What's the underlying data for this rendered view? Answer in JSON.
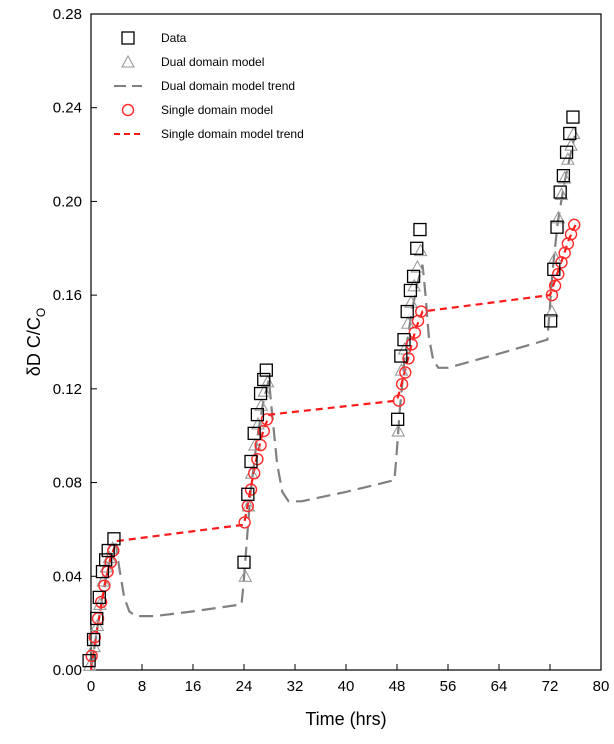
{
  "chart_data": {
    "type": "scatter",
    "xlabel": "Time (hrs)",
    "ylabel_main": "δD C/C",
    "ylabel_sub": "O",
    "xlim": [
      0,
      80
    ],
    "ylim": [
      0,
      0.28
    ],
    "x_ticks": [
      0,
      8,
      16,
      24,
      32,
      40,
      48,
      56,
      64,
      72,
      80
    ],
    "y_ticks": [
      0.0,
      0.04,
      0.08,
      0.12,
      0.16,
      0.2,
      0.24,
      0.28
    ],
    "y_tick_labels": [
      "0.00",
      "0.04",
      "0.08",
      "0.12",
      "0.16",
      "0.20",
      "0.24",
      "0.28"
    ],
    "grid": false,
    "legend_position": "top-left",
    "legend": [
      {
        "label": "Data",
        "marker": "square",
        "color": "#000000"
      },
      {
        "label": "Dual domain model",
        "marker": "triangle",
        "color": "#9a9a9a"
      },
      {
        "label": "Dual domain model trend",
        "marker": "dash",
        "color": "#808080"
      },
      {
        "label": "Single domain model",
        "marker": "circle",
        "color": "#ff2a2a"
      },
      {
        "label": "Single domain model trend",
        "marker": "dash",
        "color": "#ff1a1a"
      }
    ],
    "series": [
      {
        "name": "Data",
        "type": "scatter",
        "marker": "square",
        "color": "#000000",
        "points": [
          [
            -0.3,
            0.004
          ],
          [
            0.4,
            0.013
          ],
          [
            0.9,
            0.022
          ],
          [
            1.3,
            0.031
          ],
          [
            1.8,
            0.042
          ],
          [
            2.3,
            0.047
          ],
          [
            2.7,
            0.051
          ],
          [
            3.6,
            0.056
          ],
          [
            24.0,
            0.046
          ],
          [
            24.6,
            0.075
          ],
          [
            25.1,
            0.089
          ],
          [
            25.6,
            0.101
          ],
          [
            26.1,
            0.109
          ],
          [
            26.6,
            0.118
          ],
          [
            27.1,
            0.124
          ],
          [
            27.5,
            0.128
          ],
          [
            48.1,
            0.107
          ],
          [
            48.6,
            0.134
          ],
          [
            49.1,
            0.141
          ],
          [
            49.6,
            0.153
          ],
          [
            50.1,
            0.162
          ],
          [
            50.6,
            0.168
          ],
          [
            51.1,
            0.18
          ],
          [
            51.6,
            0.188
          ],
          [
            72.1,
            0.149
          ],
          [
            72.6,
            0.171
          ],
          [
            73.1,
            0.189
          ],
          [
            73.6,
            0.204
          ],
          [
            74.1,
            0.211
          ],
          [
            74.6,
            0.221
          ],
          [
            75.1,
            0.229
          ],
          [
            75.6,
            0.236
          ]
        ]
      },
      {
        "name": "Dual domain model",
        "type": "scatter",
        "marker": "triangle",
        "color": "#9a9a9a",
        "points": [
          [
            -0.2,
            0.002
          ],
          [
            0.5,
            0.01
          ],
          [
            1.0,
            0.019
          ],
          [
            1.4,
            0.028
          ],
          [
            1.9,
            0.038
          ],
          [
            2.4,
            0.044
          ],
          [
            2.9,
            0.048
          ],
          [
            3.4,
            0.052
          ],
          [
            24.2,
            0.04
          ],
          [
            24.7,
            0.07
          ],
          [
            25.2,
            0.084
          ],
          [
            25.7,
            0.096
          ],
          [
            26.2,
            0.105
          ],
          [
            26.7,
            0.113
          ],
          [
            27.2,
            0.119
          ],
          [
            27.7,
            0.123
          ],
          [
            48.2,
            0.102
          ],
          [
            48.7,
            0.128
          ],
          [
            49.2,
            0.137
          ],
          [
            49.7,
            0.148
          ],
          [
            50.2,
            0.157
          ],
          [
            50.7,
            0.164
          ],
          [
            51.2,
            0.172
          ],
          [
            51.7,
            0.179
          ],
          [
            72.3,
            0.153
          ],
          [
            72.8,
            0.176
          ],
          [
            73.3,
            0.193
          ],
          [
            73.8,
            0.203
          ],
          [
            74.3,
            0.21
          ],
          [
            74.8,
            0.218
          ],
          [
            75.3,
            0.224
          ],
          [
            75.7,
            0.229
          ]
        ]
      },
      {
        "name": "Dual domain model trend",
        "type": "line",
        "dash": "dash",
        "color": "#808080",
        "points": [
          [
            0,
            0.0
          ],
          [
            1,
            0.018
          ],
          [
            2,
            0.035
          ],
          [
            3,
            0.047
          ],
          [
            3.9,
            0.054
          ],
          [
            4.4,
            0.044
          ],
          [
            5.2,
            0.031
          ],
          [
            6,
            0.025
          ],
          [
            7,
            0.023
          ],
          [
            10,
            0.023
          ],
          [
            16,
            0.025
          ],
          [
            23.6,
            0.028
          ],
          [
            23.9,
            0.036
          ],
          [
            24.3,
            0.05
          ],
          [
            25,
            0.075
          ],
          [
            26,
            0.098
          ],
          [
            27,
            0.114
          ],
          [
            27.9,
            0.124
          ],
          [
            28.4,
            0.11
          ],
          [
            29.2,
            0.088
          ],
          [
            30,
            0.076
          ],
          [
            31,
            0.072
          ],
          [
            33,
            0.072
          ],
          [
            40,
            0.076
          ],
          [
            47.6,
            0.081
          ],
          [
            47.9,
            0.091
          ],
          [
            48.4,
            0.11
          ],
          [
            49.2,
            0.133
          ],
          [
            50.2,
            0.151
          ],
          [
            51.2,
            0.165
          ],
          [
            52,
            0.173
          ],
          [
            52.4,
            0.162
          ],
          [
            53,
            0.142
          ],
          [
            53.7,
            0.132
          ],
          [
            54.5,
            0.129
          ],
          [
            56,
            0.129
          ],
          [
            64,
            0.135
          ],
          [
            71.6,
            0.141
          ],
          [
            71.9,
            0.152
          ],
          [
            72.4,
            0.17
          ],
          [
            73.2,
            0.191
          ],
          [
            74.2,
            0.207
          ],
          [
            75.2,
            0.22
          ],
          [
            75.9,
            0.228
          ]
        ]
      },
      {
        "name": "Single domain model",
        "type": "scatter",
        "marker": "circle",
        "color": "#ff2a2a",
        "points": [
          [
            0.1,
            0.006
          ],
          [
            0.6,
            0.014
          ],
          [
            1.1,
            0.022
          ],
          [
            1.6,
            0.029
          ],
          [
            2.1,
            0.036
          ],
          [
            2.6,
            0.042
          ],
          [
            3.1,
            0.046
          ],
          [
            3.5,
            0.051
          ],
          [
            24.1,
            0.063
          ],
          [
            24.6,
            0.07
          ],
          [
            25.1,
            0.077
          ],
          [
            25.6,
            0.084
          ],
          [
            26.1,
            0.09
          ],
          [
            26.6,
            0.096
          ],
          [
            27.1,
            0.102
          ],
          [
            27.6,
            0.107
          ],
          [
            48.3,
            0.115
          ],
          [
            48.8,
            0.122
          ],
          [
            49.3,
            0.127
          ],
          [
            49.8,
            0.133
          ],
          [
            50.3,
            0.139
          ],
          [
            50.8,
            0.144
          ],
          [
            51.3,
            0.149
          ],
          [
            51.8,
            0.153
          ],
          [
            72.3,
            0.16
          ],
          [
            72.8,
            0.164
          ],
          [
            73.3,
            0.169
          ],
          [
            73.8,
            0.174
          ],
          [
            74.3,
            0.178
          ],
          [
            74.8,
            0.182
          ],
          [
            75.3,
            0.186
          ],
          [
            75.8,
            0.19
          ]
        ]
      },
      {
        "name": "Single domain model trend",
        "type": "line",
        "dash": "dash",
        "color": "#ff1a1a",
        "points": [
          [
            0,
            0.0
          ],
          [
            1,
            0.018
          ],
          [
            2,
            0.034
          ],
          [
            3,
            0.047
          ],
          [
            4,
            0.055
          ],
          [
            24,
            0.062
          ],
          [
            25,
            0.077
          ],
          [
            26,
            0.091
          ],
          [
            27,
            0.102
          ],
          [
            28,
            0.109
          ],
          [
            48,
            0.115
          ],
          [
            49,
            0.125
          ],
          [
            50,
            0.136
          ],
          [
            51,
            0.146
          ],
          [
            52,
            0.153
          ],
          [
            72,
            0.16
          ],
          [
            73,
            0.168
          ],
          [
            74,
            0.176
          ],
          [
            75,
            0.184
          ],
          [
            76,
            0.19
          ]
        ]
      }
    ]
  }
}
